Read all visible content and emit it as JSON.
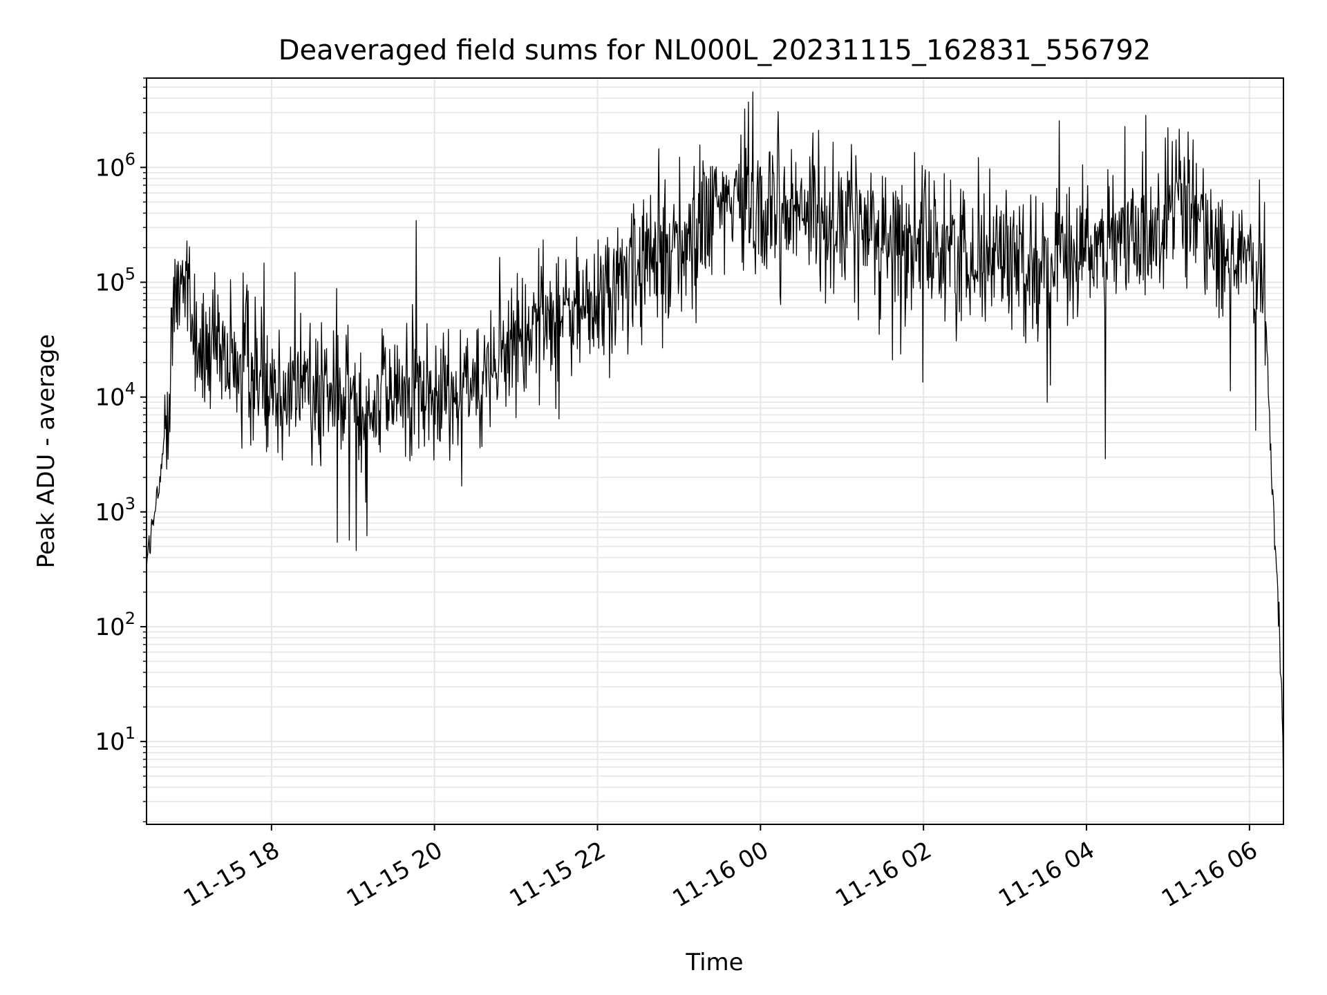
{
  "chart_data": {
    "type": "line",
    "title": "Deaveraged field sums for NL000L_20231115_162831_556792",
    "xlabel": "Time",
    "ylabel": "Peak ADU - average",
    "yscale": "log",
    "grid": true,
    "line_color": "#000000",
    "grid_color": "#e6e6e6",
    "xlim": [
      "2023-11-15 16:28",
      "2023-11-16 06:25"
    ],
    "ylim": [
      1.9,
      6000000
    ],
    "x_ticks": [
      {
        "t": "2023-11-15 18:00",
        "label": "11-15 18"
      },
      {
        "t": "2023-11-15 20:00",
        "label": "11-15 20"
      },
      {
        "t": "2023-11-15 22:00",
        "label": "11-15 22"
      },
      {
        "t": "2023-11-16 00:00",
        "label": "11-16 00"
      },
      {
        "t": "2023-11-16 02:00",
        "label": "11-16 02"
      },
      {
        "t": "2023-11-16 04:00",
        "label": "11-16 04"
      },
      {
        "t": "2023-11-16 06:00",
        "label": "11-16 06"
      }
    ],
    "y_ticks": [
      {
        "value": 10,
        "base": "10",
        "exp": "1"
      },
      {
        "value": 100,
        "base": "10",
        "exp": "2"
      },
      {
        "value": 1000,
        "base": "10",
        "exp": "3"
      },
      {
        "value": 10000,
        "base": "10",
        "exp": "4"
      },
      {
        "value": 100000,
        "base": "10",
        "exp": "5"
      },
      {
        "value": 1000000,
        "base": "10",
        "exp": "6"
      }
    ],
    "series": [
      {
        "x": [
          "2023-11-15 16:28",
          "2023-11-15 16:31",
          "2023-11-15 16:34",
          "2023-11-15 16:37",
          "2023-11-15 16:40",
          "2023-11-15 16:43",
          "2023-11-15 16:46",
          "2023-11-15 16:50",
          "2023-11-15 16:55",
          "2023-11-15 17:00",
          "2023-11-15 17:05",
          "2023-11-15 17:10",
          "2023-11-15 17:20",
          "2023-11-15 17:30",
          "2023-11-15 17:45",
          "2023-11-15 18:00",
          "2023-11-15 18:15",
          "2023-11-15 18:30",
          "2023-11-15 18:45",
          "2023-11-15 19:00",
          "2023-11-15 19:15",
          "2023-11-15 19:30",
          "2023-11-15 19:45",
          "2023-11-15 20:00",
          "2023-11-15 20:15",
          "2023-11-15 20:30",
          "2023-11-15 20:45",
          "2023-11-15 21:00",
          "2023-11-15 21:15",
          "2023-11-15 21:30",
          "2023-11-15 21:45",
          "2023-11-15 22:00",
          "2023-11-15 22:15",
          "2023-11-15 22:30",
          "2023-11-15 22:45",
          "2023-11-15 23:00",
          "2023-11-15 23:15",
          "2023-11-15 23:30",
          "2023-11-15 23:45",
          "2023-11-16 00:00",
          "2023-11-16 00:15",
          "2023-11-16 00:30",
          "2023-11-16 00:45",
          "2023-11-16 01:00",
          "2023-11-16 01:15",
          "2023-11-16 01:30",
          "2023-11-16 01:45",
          "2023-11-16 02:00",
          "2023-11-16 02:15",
          "2023-11-16 02:30",
          "2023-11-16 02:45",
          "2023-11-16 03:00",
          "2023-11-16 03:15",
          "2023-11-16 03:30",
          "2023-11-16 03:45",
          "2023-11-16 04:00",
          "2023-11-16 04:15",
          "2023-11-16 04:30",
          "2023-11-16 04:45",
          "2023-11-16 05:00",
          "2023-11-16 05:15",
          "2023-11-16 05:30",
          "2023-11-16 05:45",
          "2023-11-16 06:00",
          "2023-11-16 06:08",
          "2023-11-16 06:12",
          "2023-11-16 06:15",
          "2023-11-16 06:18",
          "2023-11-16 06:20",
          "2023-11-16 06:22",
          "2023-11-16 06:24",
          "2023-11-16 06:25"
        ],
        "y": [
          400,
          600,
          900,
          1500,
          3000,
          8000,
          30000,
          80000,
          150000,
          60000,
          30000,
          25000,
          20000,
          18000,
          20000,
          15000,
          12000,
          14000,
          10000,
          9000,
          10000,
          11000,
          12000,
          9000,
          12000,
          18000,
          20000,
          30000,
          45000,
          50000,
          55000,
          65000,
          90000,
          130000,
          180000,
          250000,
          300000,
          450000,
          500000,
          500000,
          450000,
          400000,
          380000,
          350000,
          300000,
          280000,
          250000,
          220000,
          200000,
          180000,
          180000,
          170000,
          170000,
          150000,
          140000,
          200000,
          230000,
          200000,
          250000,
          350000,
          400000,
          300000,
          200000,
          120000,
          100000,
          50000,
          5000,
          700,
          300,
          100,
          20,
          4
        ]
      }
    ]
  }
}
